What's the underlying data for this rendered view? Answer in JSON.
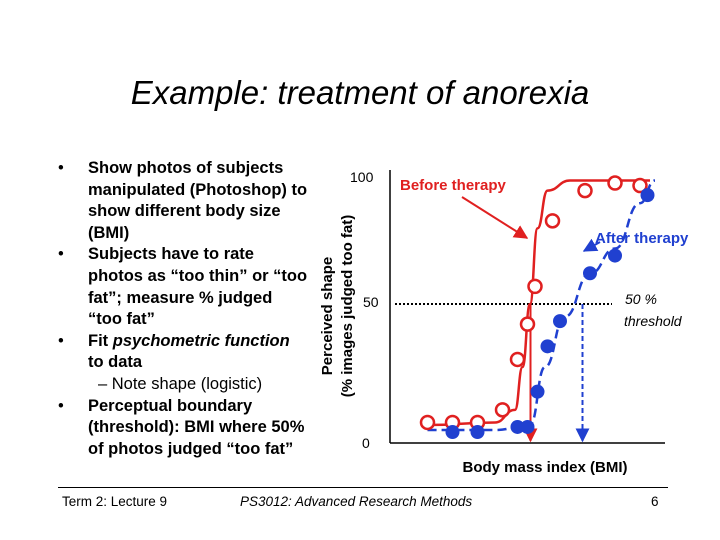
{
  "slide": {
    "title": "Example: treatment of anorexia",
    "bullets": [
      {
        "text": "Show photos of subjects manipulated (Photoshop) to show different body size (BMI)"
      },
      {
        "text": "Subjects have to rate photos as “too thin” or “too fat”; measure % judged “too fat”"
      },
      {
        "text_before": "Fit ",
        "text_italic": "psychometric function",
        "text_after": " to data"
      },
      {
        "text": "Perceptual boundary (threshold): BMI where 50% of photos judged “too fat”"
      }
    ],
    "sub_bullet": "– Note shape (logistic)",
    "bullet_glyph": "•"
  },
  "footer": {
    "left": "Term 2: Lecture 9",
    "center": "PS3012: Advanced Research Methods",
    "page": "6"
  },
  "chart_data": {
    "type": "scatter",
    "title": "",
    "xlabel": "Body mass index (BMI)",
    "ylabel_line1": "Perceived shape",
    "ylabel_line2": "(% images judged too fat)",
    "yticks": [
      "100",
      "50",
      "0"
    ],
    "ylim": [
      0,
      100
    ],
    "xlim": [
      0,
      10
    ],
    "threshold_label_line1": "50 %",
    "threshold_label_line2": "threshold",
    "series": [
      {
        "name": "Before therapy",
        "color": "#e02020",
        "marker": "open-circle",
        "points": [
          [
            0.3,
            3
          ],
          [
            1.3,
            3
          ],
          [
            2.3,
            3
          ],
          [
            3.3,
            8
          ],
          [
            3.9,
            28
          ],
          [
            4.3,
            42
          ],
          [
            4.6,
            57
          ],
          [
            5.3,
            83
          ],
          [
            6.6,
            95
          ],
          [
            7.8,
            98
          ],
          [
            8.8,
            97
          ]
        ],
        "threshold_x": 4.42
      },
      {
        "name": "After therapy",
        "color": "#2040d0",
        "marker": "filled-circle",
        "points": [
          [
            1.3,
            0
          ],
          [
            2.3,
            0
          ],
          [
            3.9,
            2
          ],
          [
            4.3,
            2
          ],
          [
            4.7,
            16
          ],
          [
            5.1,
            34
          ],
          [
            5.6,
            44
          ],
          [
            6.8,
            63
          ],
          [
            7.8,
            70
          ],
          [
            9.1,
            94
          ]
        ],
        "threshold_x": 6.5
      }
    ]
  }
}
